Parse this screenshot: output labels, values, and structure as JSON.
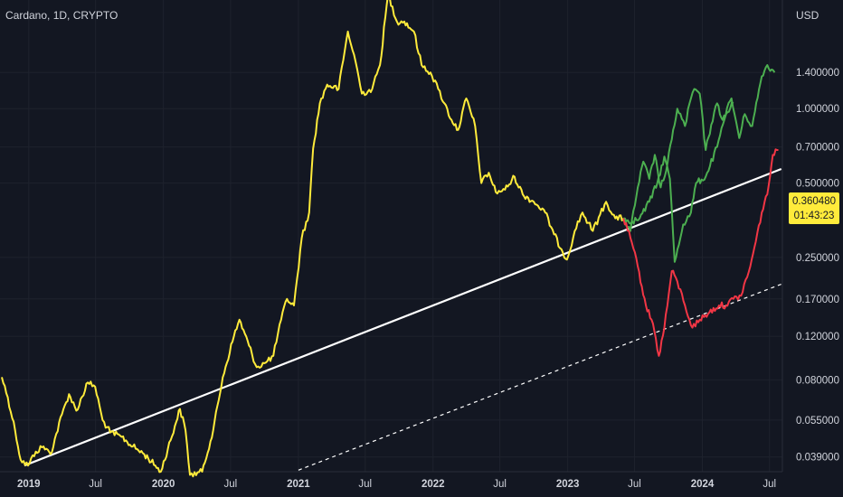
{
  "header": {
    "symbol": "Cardano, 1D, CRYPTO",
    "currency": "USD"
  },
  "badge": {
    "price": "0.360480",
    "countdown": "01:43:23"
  },
  "colors": {
    "background": "#131722",
    "price_line": "#ffeb3b",
    "bull_path": "#4caf50",
    "bear_path": "#f23645",
    "trend_line": "#ffffff"
  },
  "chart_data": {
    "type": "line",
    "scale": "log",
    "ylim": [
      0.034,
      2.75
    ],
    "xlim": [
      "2018-10-15",
      "2024-08-05"
    ],
    "y_ticks": [
      {
        "value": 1.4,
        "label": "1.400000"
      },
      {
        "value": 1.0,
        "label": "1.000000"
      },
      {
        "value": 0.7,
        "label": "0.700000"
      },
      {
        "value": 0.5,
        "label": "0.500000"
      },
      {
        "value": 0.25,
        "label": "0.250000"
      },
      {
        "value": 0.17,
        "label": "0.170000"
      },
      {
        "value": 0.12,
        "label": "0.120000"
      },
      {
        "value": 0.08,
        "label": "0.080000"
      },
      {
        "value": 0.055,
        "label": "0.055000"
      },
      {
        "value": 0.039,
        "label": "0.039000"
      }
    ],
    "x_ticks": [
      {
        "date": "2019-01-01",
        "label": "2019",
        "major": true
      },
      {
        "date": "2019-07-01",
        "label": "Jul",
        "major": false
      },
      {
        "date": "2020-01-01",
        "label": "2020",
        "major": true
      },
      {
        "date": "2020-07-01",
        "label": "Jul",
        "major": false
      },
      {
        "date": "2021-01-01",
        "label": "2021",
        "major": true
      },
      {
        "date": "2021-07-01",
        "label": "Jul",
        "major": false
      },
      {
        "date": "2022-01-01",
        "label": "2022",
        "major": true
      },
      {
        "date": "2022-07-01",
        "label": "Jul",
        "major": false
      },
      {
        "date": "2023-01-01",
        "label": "2023",
        "major": true
      },
      {
        "date": "2023-07-01",
        "label": "Jul",
        "major": false
      },
      {
        "date": "2024-01-01",
        "label": "2024",
        "major": true
      },
      {
        "date": "2024-07-01",
        "label": "Jul",
        "major": false
      }
    ],
    "series": [
      {
        "key": "price",
        "points": [
          [
            "2018-10-20",
            0.082
          ],
          [
            "2018-11-05",
            0.068
          ],
          [
            "2018-11-25",
            0.05
          ],
          [
            "2018-12-10",
            0.038
          ],
          [
            "2018-12-30",
            0.036
          ],
          [
            "2019-01-20",
            0.041
          ],
          [
            "2019-02-10",
            0.043
          ],
          [
            "2019-03-01",
            0.04
          ],
          [
            "2019-04-01",
            0.058
          ],
          [
            "2019-04-20",
            0.07
          ],
          [
            "2019-05-10",
            0.06
          ],
          [
            "2019-06-10",
            0.078
          ],
          [
            "2019-06-30",
            0.075
          ],
          [
            "2019-07-20",
            0.055
          ],
          [
            "2019-08-10",
            0.049
          ],
          [
            "2019-09-10",
            0.047
          ],
          [
            "2019-10-10",
            0.043
          ],
          [
            "2019-11-10",
            0.04
          ],
          [
            "2019-12-10",
            0.036
          ],
          [
            "2019-12-25",
            0.034
          ],
          [
            "2020-02-01",
            0.052
          ],
          [
            "2020-02-15",
            0.061
          ],
          [
            "2020-03-01",
            0.05
          ],
          [
            "2020-03-13",
            0.033
          ],
          [
            "2020-04-15",
            0.034
          ],
          [
            "2020-05-15",
            0.05
          ],
          [
            "2020-06-10",
            0.082
          ],
          [
            "2020-07-10",
            0.12
          ],
          [
            "2020-07-25",
            0.14
          ],
          [
            "2020-08-20",
            0.11
          ],
          [
            "2020-09-10",
            0.09
          ],
          [
            "2020-10-05",
            0.094
          ],
          [
            "2020-10-25",
            0.1
          ],
          [
            "2020-11-15",
            0.14
          ],
          [
            "2020-12-01",
            0.17
          ],
          [
            "2020-12-20",
            0.16
          ],
          [
            "2021-01-10",
            0.3
          ],
          [
            "2021-01-30",
            0.38
          ],
          [
            "2021-02-10",
            0.69
          ],
          [
            "2021-02-28",
            1.05
          ],
          [
            "2021-03-20",
            1.25
          ],
          [
            "2021-04-20",
            1.2
          ],
          [
            "2021-05-15",
            2.05
          ],
          [
            "2021-06-05",
            1.55
          ],
          [
            "2021-06-22",
            1.15
          ],
          [
            "2021-07-20",
            1.2
          ],
          [
            "2021-08-10",
            1.5
          ],
          [
            "2021-09-01",
            2.9
          ],
          [
            "2021-09-25",
            2.25
          ],
          [
            "2021-10-15",
            2.25
          ],
          [
            "2021-11-10",
            2.05
          ],
          [
            "2021-12-01",
            1.5
          ],
          [
            "2021-12-25",
            1.4
          ],
          [
            "2022-01-15",
            1.2
          ],
          [
            "2022-02-01",
            1.05
          ],
          [
            "2022-02-20",
            0.9
          ],
          [
            "2022-03-10",
            0.82
          ],
          [
            "2022-04-01",
            1.1
          ],
          [
            "2022-04-25",
            0.85
          ],
          [
            "2022-05-12",
            0.5
          ],
          [
            "2022-06-01",
            0.55
          ],
          [
            "2022-06-20",
            0.46
          ],
          [
            "2022-07-15",
            0.47
          ],
          [
            "2022-08-10",
            0.53
          ],
          [
            "2022-09-01",
            0.45
          ],
          [
            "2022-10-01",
            0.42
          ],
          [
            "2022-11-01",
            0.38
          ],
          [
            "2022-11-25",
            0.31
          ],
          [
            "2022-12-15",
            0.27
          ],
          [
            "2022-12-30",
            0.245
          ],
          [
            "2023-01-20",
            0.32
          ],
          [
            "2023-02-10",
            0.38
          ],
          [
            "2023-03-10",
            0.32
          ],
          [
            "2023-04-15",
            0.42
          ],
          [
            "2023-05-10",
            0.36
          ],
          [
            "2023-06-01",
            0.36
          ]
        ]
      },
      {
        "key": "bull_path",
        "points": [
          [
            "2023-06-01",
            0.36
          ],
          [
            "2023-06-20",
            0.32
          ],
          [
            "2023-07-10",
            0.48
          ],
          [
            "2023-07-25",
            0.61
          ],
          [
            "2023-08-10",
            0.52
          ],
          [
            "2023-08-25",
            0.65
          ],
          [
            "2023-09-10",
            0.48
          ],
          [
            "2023-09-25",
            0.56
          ],
          [
            "2023-10-10",
            0.75
          ],
          [
            "2023-10-25",
            1.0
          ],
          [
            "2023-11-15",
            0.85
          ],
          [
            "2023-12-01",
            1.1
          ],
          [
            "2023-12-10",
            1.2
          ],
          [
            "2023-12-25",
            1.15
          ],
          [
            "2024-01-10",
            0.68
          ],
          [
            "2024-01-25",
            0.86
          ],
          [
            "2024-02-10",
            1.05
          ],
          [
            "2024-02-25",
            0.9
          ],
          [
            "2024-03-20",
            1.1
          ],
          [
            "2024-04-10",
            0.76
          ],
          [
            "2024-04-25",
            0.95
          ],
          [
            "2024-05-15",
            0.85
          ],
          [
            "2024-06-10",
            1.35
          ],
          [
            "2024-06-25",
            1.5
          ],
          [
            "2024-07-15",
            1.4
          ]
        ]
      },
      {
        "key": "bull_path_alt",
        "points": [
          [
            "2023-06-01",
            0.36
          ],
          [
            "2023-06-25",
            0.35
          ],
          [
            "2023-07-15",
            0.36
          ],
          [
            "2023-08-10",
            0.42
          ],
          [
            "2023-09-01",
            0.5
          ],
          [
            "2023-09-20",
            0.64
          ],
          [
            "2023-10-05",
            0.52
          ],
          [
            "2023-10-18",
            0.24
          ],
          [
            "2023-11-10",
            0.34
          ],
          [
            "2023-12-01",
            0.38
          ],
          [
            "2023-12-15",
            0.5
          ],
          [
            "2024-01-10",
            0.53
          ],
          [
            "2024-02-10",
            0.7
          ],
          [
            "2024-03-05",
            0.95
          ],
          [
            "2024-03-25",
            1.05
          ]
        ]
      },
      {
        "key": "bear_path",
        "points": [
          [
            "2023-06-01",
            0.36
          ],
          [
            "2023-06-20",
            0.3
          ],
          [
            "2023-07-10",
            0.23
          ],
          [
            "2023-08-01",
            0.16
          ],
          [
            "2023-08-20",
            0.135
          ],
          [
            "2023-09-05",
            0.1
          ],
          [
            "2023-09-20",
            0.13
          ],
          [
            "2023-10-10",
            0.22
          ],
          [
            "2023-10-25",
            0.2
          ],
          [
            "2023-11-15",
            0.16
          ],
          [
            "2023-12-05",
            0.13
          ],
          [
            "2023-12-25",
            0.14
          ],
          [
            "2024-01-20",
            0.15
          ],
          [
            "2024-02-15",
            0.16
          ],
          [
            "2024-03-05",
            0.16
          ],
          [
            "2024-03-25",
            0.17
          ],
          [
            "2024-04-15",
            0.175
          ],
          [
            "2024-05-10",
            0.23
          ],
          [
            "2024-05-25",
            0.29
          ],
          [
            "2024-06-10",
            0.38
          ],
          [
            "2024-06-25",
            0.45
          ],
          [
            "2024-07-10",
            0.65
          ],
          [
            "2024-07-25",
            0.68
          ]
        ]
      }
    ],
    "trend_lines": [
      {
        "key": "support",
        "style": "solid",
        "start": [
          "2018-12-20",
          0.036
        ],
        "end": [
          "2024-08-02",
          0.57
        ]
      },
      {
        "key": "lower_channel",
        "style": "dashed",
        "start": [
          "2021-01-01",
          0.0345
        ],
        "end": [
          "2024-08-02",
          0.195
        ]
      }
    ]
  }
}
